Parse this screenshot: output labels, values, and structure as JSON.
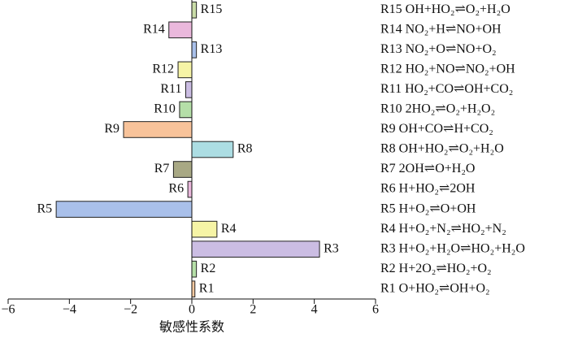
{
  "chart_data": {
    "type": "bar",
    "orientation": "horizontal",
    "x_label": "敏感性系数",
    "categories": [
      "R1",
      "R2",
      "R3",
      "R4",
      "R5",
      "R6",
      "R7",
      "R8",
      "R9",
      "R10",
      "R11",
      "R12",
      "R13",
      "R14",
      "R15"
    ],
    "reactions": [
      "R1 O+HO₂⇌OH+O₂",
      "R2 H+2O₂⇌HO₂+O₂",
      "R3 H+O₂+H₂O⇌HO₂+H₂O",
      "R4 H+O₂+N₂⇌HO₂+N₂",
      "R5 H+O₂⇌O+OH",
      "R6 H+HO₂⇌2OH",
      "R7 2OH⇌O+H₂O",
      "R8 OH+HO₂⇌O₂+H₂O",
      "R9 OH+CO⇌H+CO₂",
      "R10 2HO₂⇌O₂+H₂O₂",
      "R11 HO₂+CO⇌OH+CO₂",
      "R12 HO₂+NO⇌NO₂+OH",
      "R13 NO₂+O⇌NO+O₂",
      "R14 NO₂+H⇌NO+OH",
      "R15 OH+HO₂⇌O₂+H₂O"
    ],
    "values": [
      0.1,
      0.15,
      4.17,
      0.82,
      -4.43,
      -0.13,
      -0.6,
      1.35,
      -2.23,
      -0.4,
      -0.2,
      -0.45,
      0.15,
      -0.75,
      0.15
    ],
    "colors": [
      "#f9c9a0",
      "#b5dfa8",
      "#cbbde3",
      "#f6f4a6",
      "#a9c0ea",
      "#eab8dc",
      "#a8a884",
      "#acdde3",
      "#f8c39a",
      "#b5dfa8",
      "#cbbde3",
      "#f6f4a6",
      "#a9c0ea",
      "#eab8dc",
      "#c9dca8"
    ],
    "xlim": [
      -6,
      6
    ],
    "xticks": [
      {
        "value": -6,
        "label": "−6"
      },
      {
        "value": -4,
        "label": "−4"
      },
      {
        "value": -2,
        "label": "−2"
      },
      0,
      2,
      4,
      6
    ]
  }
}
